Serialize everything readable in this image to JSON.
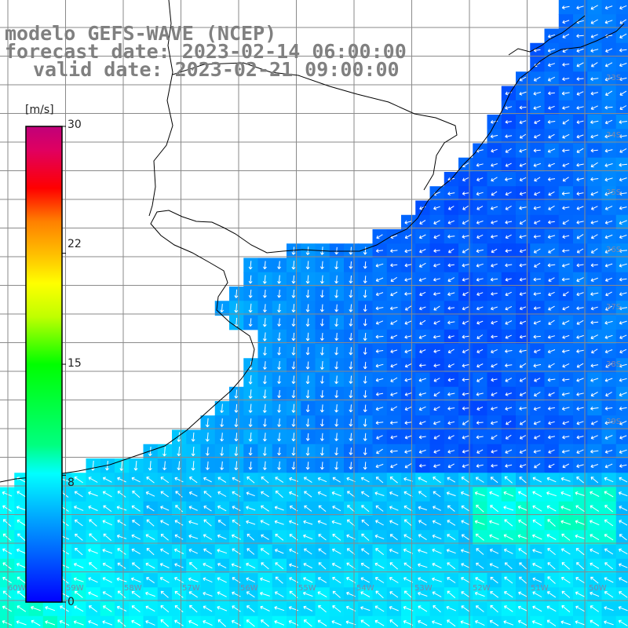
{
  "title": {
    "line1": "modelo GEFS-WAVE (NCEP)",
    "line2": "forecast date: 2023-02-14 06:00:00",
    "line3": "valid date: 2023-02-21 09:00:00"
  },
  "colorbar": {
    "unit": "[m/s]",
    "min": 0,
    "max": 30,
    "tick_labels": [
      "30",
      "22",
      "15",
      "8",
      "0"
    ],
    "tick_values": [
      30,
      22,
      15,
      8,
      0
    ],
    "colors": [
      "#0000ff",
      "#0060ff",
      "#00a0ff",
      "#00ffff",
      "#00ff80",
      "#00ff00",
      "#c0ff00",
      "#ffff00",
      "#ffc000",
      "#ff8000",
      "#ff0000",
      "#e00060",
      "#c0007a"
    ]
  },
  "grid_labels": {
    "lat_right": [
      "33S",
      "34S",
      "35S",
      "36S",
      "37S",
      "38S",
      "39S"
    ],
    "lon_bottom": [
      "60W",
      "59W",
      "58W",
      "57W",
      "56W",
      "55W",
      "54W",
      "53W",
      "52W",
      "51W",
      "50W"
    ]
  }
}
